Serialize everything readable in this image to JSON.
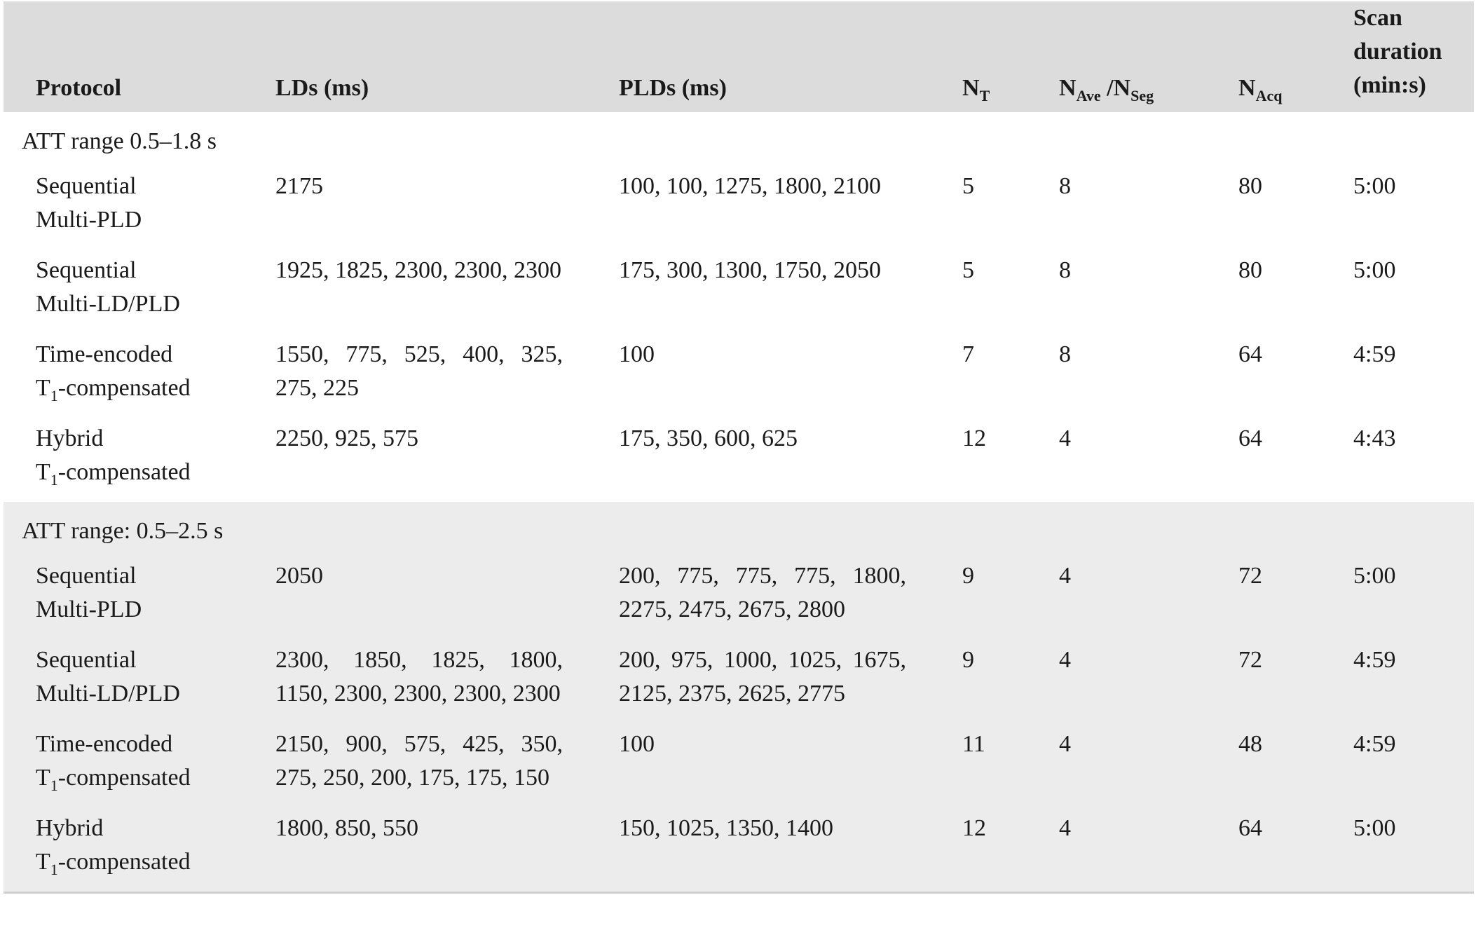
{
  "headers": {
    "protocol": "Protocol",
    "lds": "LDs (ms)",
    "plds": "PLDs (ms)",
    "nt_main": "N",
    "nt_sub": "T",
    "nave_main": "N",
    "nave_sub": "Ave",
    "nave_sep": " /N",
    "nseg_sub": "Seg",
    "nacq_main": "N",
    "nacq_sub": "Acq",
    "dur_line1": "Scan",
    "dur_line2": "duration",
    "dur_line3": "(min:s)"
  },
  "groups": [
    {
      "label": "ATT range 0.5–1.8 s",
      "rows": [
        {
          "proto1": "Sequential",
          "proto2_pre": "",
          "proto2_sub": "",
          "proto2": "Multi-PLD",
          "lds": "2175",
          "plds": "100, 100, 1275, 1800, 2100",
          "nt": "5",
          "nave": "8",
          "nacq": "80",
          "dur": "5:00"
        },
        {
          "proto1": "Sequential",
          "proto2_pre": "",
          "proto2_sub": "",
          "proto2": "Multi-LD/PLD",
          "lds": "1925, 1825, 2300, 2300, 2300",
          "plds": "175, 300, 1300, 1750, 2050",
          "nt": "5",
          "nave": "8",
          "nacq": "80",
          "dur": "5:00"
        },
        {
          "proto1": "Time-encoded",
          "proto2_pre": "T",
          "proto2_sub": "1",
          "proto2": "-compensated",
          "lds": "1550, 775, 525, 400, 325, 275, 225",
          "plds": "100",
          "nt": "7",
          "nave": "8",
          "nacq": "64",
          "dur": "4:59"
        },
        {
          "proto1": "Hybrid",
          "proto2_pre": "T",
          "proto2_sub": "1",
          "proto2": "-compensated",
          "lds": "2250, 925, 575",
          "plds": "175, 350, 600, 625",
          "nt": "12",
          "nave": "4",
          "nacq": "64",
          "dur": "4:43"
        }
      ]
    },
    {
      "label": "ATT range: 0.5–2.5 s",
      "rows": [
        {
          "proto1": "Sequential",
          "proto2_pre": "",
          "proto2_sub": "",
          "proto2": "Multi-PLD",
          "lds": "2050",
          "plds": "200, 775, 775, 775, 1800, 2275, 2475, 2675, 2800",
          "nt": "9",
          "nave": "4",
          "nacq": "72",
          "dur": "5:00"
        },
        {
          "proto1": "Sequential",
          "proto2_pre": "",
          "proto2_sub": "",
          "proto2": "Multi-LD/PLD",
          "lds": "2300, 1850, 1825, 1800, 1150, 2300, 2300, 2300, 2300",
          "plds": "200, 975, 1000, 1025, 1675, 2125, 2375, 2625, 2775",
          "nt": "9",
          "nave": "4",
          "nacq": "72",
          "dur": "4:59"
        },
        {
          "proto1": "Time-encoded",
          "proto2_pre": "T",
          "proto2_sub": "1",
          "proto2": "-compensated",
          "lds": "2150, 900, 575, 425, 350, 275, 250, 200, 175, 175, 150",
          "plds": "100",
          "nt": "11",
          "nave": "4",
          "nacq": "48",
          "dur": "4:59"
        },
        {
          "proto1": "Hybrid",
          "proto2_pre": "T",
          "proto2_sub": "1",
          "proto2": "-compensated",
          "lds": "1800, 850, 550",
          "plds": "150, 1025, 1350, 1400",
          "nt": "12",
          "nave": "4",
          "nacq": "64",
          "dur": "5:00"
        }
      ]
    }
  ]
}
